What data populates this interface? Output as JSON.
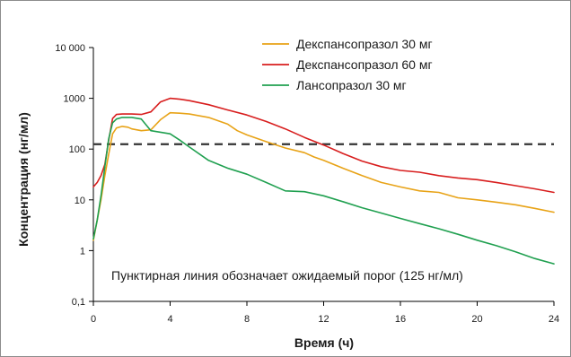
{
  "chart_data": {
    "type": "line",
    "xlabel": "Время (ч)",
    "ylabel": "Концентрация (нг/мл)",
    "xlim": [
      0,
      24
    ],
    "ylim": [
      0.1,
      10000
    ],
    "yscale": "log",
    "x_ticks": [
      0,
      4,
      8,
      12,
      16,
      20,
      24
    ],
    "x_tick_labels": [
      "0",
      "4",
      "8",
      "12",
      "16",
      "20",
      "24"
    ],
    "y_ticks": [
      0.1,
      1,
      10,
      100,
      1000,
      10000
    ],
    "y_tick_labels": [
      "0,1",
      "1",
      "10",
      "100",
      "1000",
      "10 000"
    ],
    "grid": false,
    "legend_position": "top-right",
    "threshold": {
      "value": 125,
      "style": "dashed",
      "color": "#333333"
    },
    "annotation": "Пунктирная линия обозначает ожидаемый порог (125 нг/мл)",
    "series": [
      {
        "name": "Декспансопразол 30 мг",
        "color": "#e8a317",
        "points": [
          [
            0,
            1.6
          ],
          [
            0.2,
            4
          ],
          [
            0.4,
            10
          ],
          [
            0.6,
            30
          ],
          [
            0.8,
            80
          ],
          [
            1.0,
            200
          ],
          [
            1.2,
            260
          ],
          [
            1.5,
            280
          ],
          [
            1.8,
            270
          ],
          [
            2.0,
            250
          ],
          [
            2.5,
            230
          ],
          [
            3.0,
            240
          ],
          [
            3.5,
            380
          ],
          [
            4.0,
            520
          ],
          [
            4.5,
            510
          ],
          [
            5,
            490
          ],
          [
            6,
            420
          ],
          [
            7,
            310
          ],
          [
            7.5,
            230
          ],
          [
            8,
            190
          ],
          [
            9,
            140
          ],
          [
            10,
            105
          ],
          [
            11,
            85
          ],
          [
            11.5,
            70
          ],
          [
            12,
            60
          ],
          [
            13,
            42
          ],
          [
            14,
            30
          ],
          [
            15,
            22
          ],
          [
            16,
            18
          ],
          [
            17,
            15
          ],
          [
            18,
            14
          ],
          [
            19,
            11
          ],
          [
            20,
            10
          ],
          [
            21,
            9
          ],
          [
            22,
            8
          ],
          [
            23,
            6.8
          ],
          [
            24,
            5.7
          ]
        ]
      },
      {
        "name": "Декспансопразол 60 мг",
        "color": "#d81e1e",
        "points": [
          [
            0,
            18
          ],
          [
            0.2,
            22
          ],
          [
            0.4,
            30
          ],
          [
            0.6,
            50
          ],
          [
            0.8,
            150
          ],
          [
            1.0,
            400
          ],
          [
            1.2,
            480
          ],
          [
            1.5,
            490
          ],
          [
            2.0,
            490
          ],
          [
            2.5,
            480
          ],
          [
            3.0,
            540
          ],
          [
            3.5,
            850
          ],
          [
            4.0,
            1000
          ],
          [
            4.5,
            960
          ],
          [
            5,
            900
          ],
          [
            6,
            750
          ],
          [
            7,
            590
          ],
          [
            8,
            470
          ],
          [
            9,
            350
          ],
          [
            10,
            250
          ],
          [
            11,
            170
          ],
          [
            12,
            120
          ],
          [
            13,
            82
          ],
          [
            14,
            58
          ],
          [
            15,
            45
          ],
          [
            16,
            38
          ],
          [
            17,
            35
          ],
          [
            18,
            30
          ],
          [
            19,
            27
          ],
          [
            20,
            25
          ],
          [
            21,
            22
          ],
          [
            22,
            19
          ],
          [
            23,
            16.5
          ],
          [
            24,
            14
          ]
        ]
      },
      {
        "name": "Лансопразол 30 мг",
        "color": "#20a050",
        "points": [
          [
            0,
            1.7
          ],
          [
            0.2,
            4
          ],
          [
            0.4,
            12
          ],
          [
            0.6,
            45
          ],
          [
            0.8,
            160
          ],
          [
            1.0,
            330
          ],
          [
            1.2,
            390
          ],
          [
            1.5,
            420
          ],
          [
            2.0,
            420
          ],
          [
            2.5,
            390
          ],
          [
            3.0,
            230
          ],
          [
            3.5,
            215
          ],
          [
            4.0,
            200
          ],
          [
            4.5,
            150
          ],
          [
            5,
            110
          ],
          [
            6,
            60
          ],
          [
            7,
            42
          ],
          [
            8,
            32
          ],
          [
            9,
            22
          ],
          [
            10,
            15
          ],
          [
            11,
            14.5
          ],
          [
            12,
            12
          ],
          [
            13,
            9.2
          ],
          [
            14,
            7
          ],
          [
            15,
            5.5
          ],
          [
            16,
            4.3
          ],
          [
            17,
            3.4
          ],
          [
            18,
            2.7
          ],
          [
            19,
            2.1
          ],
          [
            20,
            1.6
          ],
          [
            21,
            1.25
          ],
          [
            22,
            0.95
          ],
          [
            23,
            0.7
          ],
          [
            24,
            0.55
          ]
        ]
      }
    ]
  }
}
